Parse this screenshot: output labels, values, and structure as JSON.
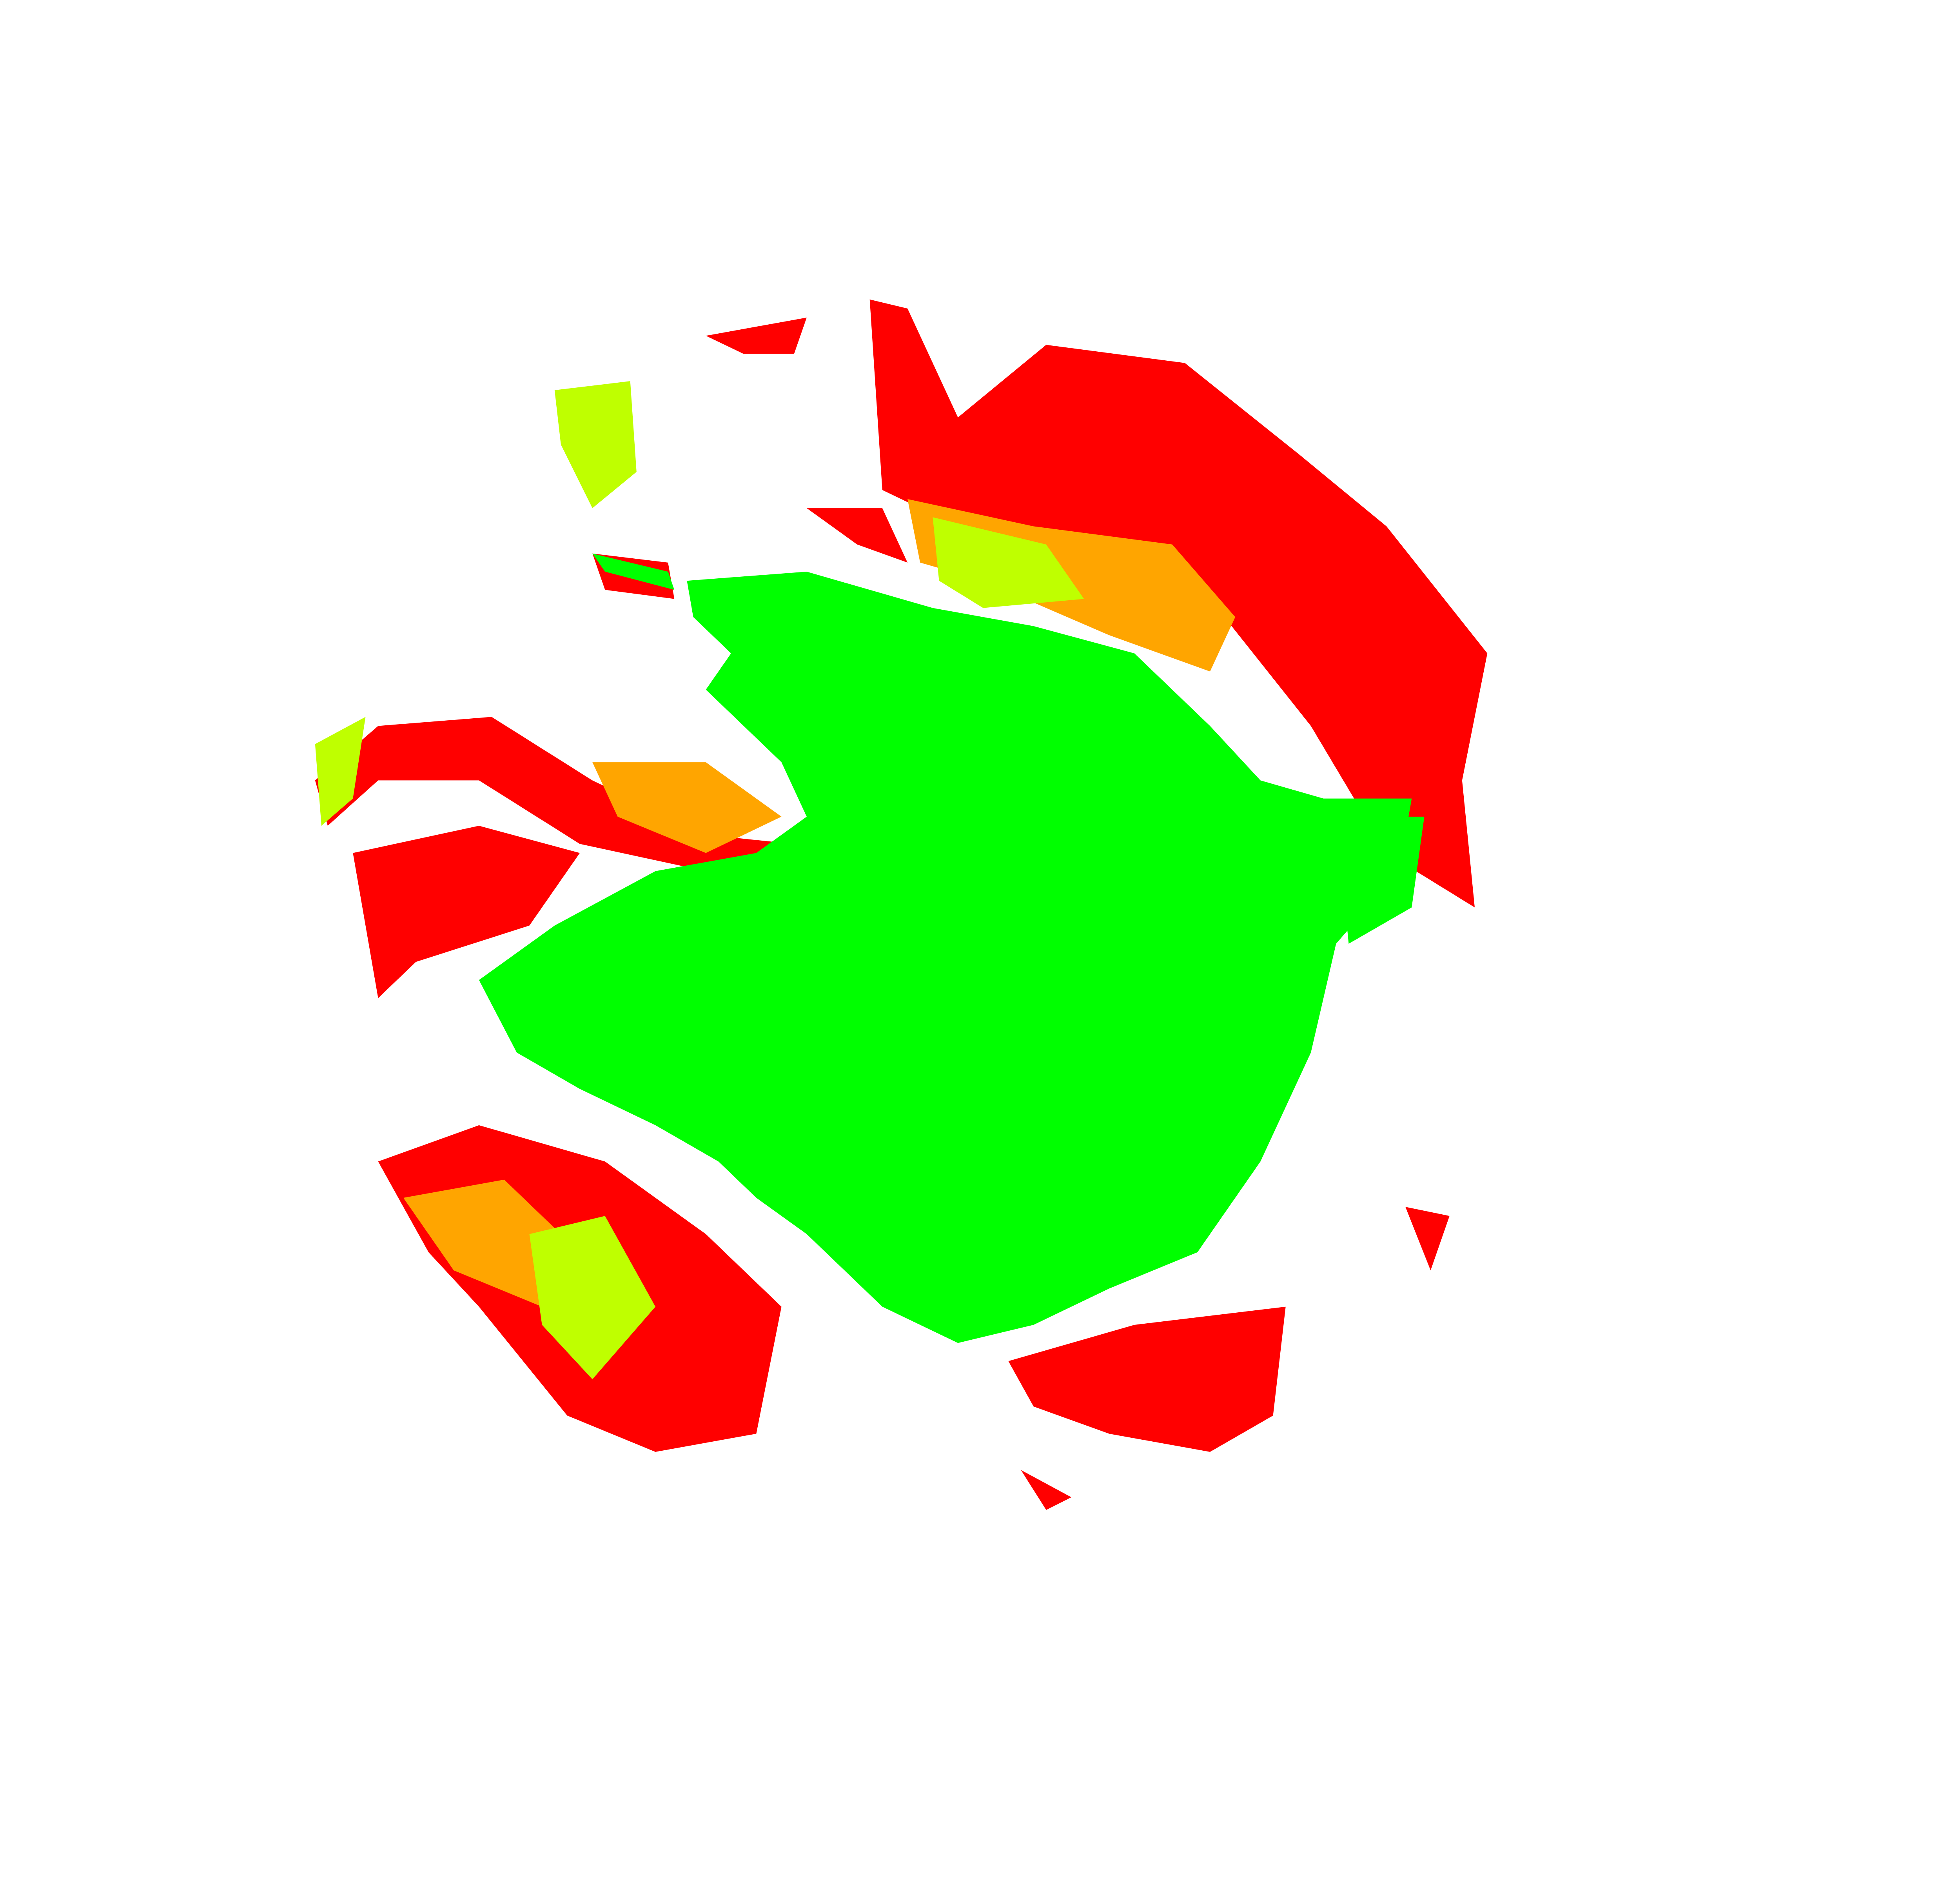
{
  "map": {
    "background": "#ffffff",
    "palette": {
      "high": "#ff0000",
      "mid_high": "#ffa500",
      "mid": "#ffff00",
      "mid_low": "#bfff00",
      "low": "#00ff00"
    }
  }
}
